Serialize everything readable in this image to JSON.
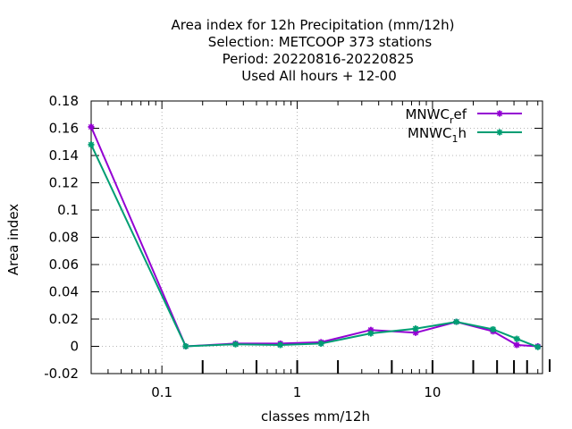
{
  "chart_data": {
    "type": "line",
    "title_lines": [
      "Area index  for 12h Precipitation (mm/12h)",
      "Selection: METCOOP    373 stations",
      "Period: 20220816-20220825",
      "Used  All hours  + 12-00"
    ],
    "xlabel": "classes mm/12h",
    "ylabel": "Area index",
    "x_scale": "log",
    "xlim": [
      0.03,
      65
    ],
    "ylim": [
      -0.02,
      0.18
    ],
    "y_ticks": [
      "-0.02",
      "0",
      "0.02",
      "0.04",
      "0.06",
      "0.08",
      "0.1",
      "0.12",
      "0.14",
      "0.16",
      "0.18"
    ],
    "x_ticks": [
      "0.1",
      "1",
      "10"
    ],
    "grid": true,
    "legend_position": "top-right",
    "series": [
      {
        "name_base": "MNWC",
        "name_sub": "r",
        "name_rest": "ef",
        "color": "#9400d3",
        "x": [
          0.03,
          0.15,
          0.35,
          0.75,
          1.5,
          3.5,
          7.5,
          15,
          28,
          42,
          60
        ],
        "y": [
          0.161,
          0.0,
          0.002,
          0.002,
          0.003,
          0.012,
          0.01,
          0.018,
          0.011,
          0.001,
          0.0
        ]
      },
      {
        "name_base": "MNWC",
        "name_sub": "1",
        "name_rest": "h",
        "color": "#009e73",
        "x": [
          0.03,
          0.15,
          0.35,
          0.75,
          1.5,
          3.5,
          7.5,
          15,
          28,
          42,
          60
        ],
        "y": [
          0.148,
          0.0,
          0.0015,
          0.001,
          0.002,
          0.0095,
          0.013,
          0.018,
          0.0125,
          0.0055,
          -0.0005
        ]
      }
    ]
  }
}
